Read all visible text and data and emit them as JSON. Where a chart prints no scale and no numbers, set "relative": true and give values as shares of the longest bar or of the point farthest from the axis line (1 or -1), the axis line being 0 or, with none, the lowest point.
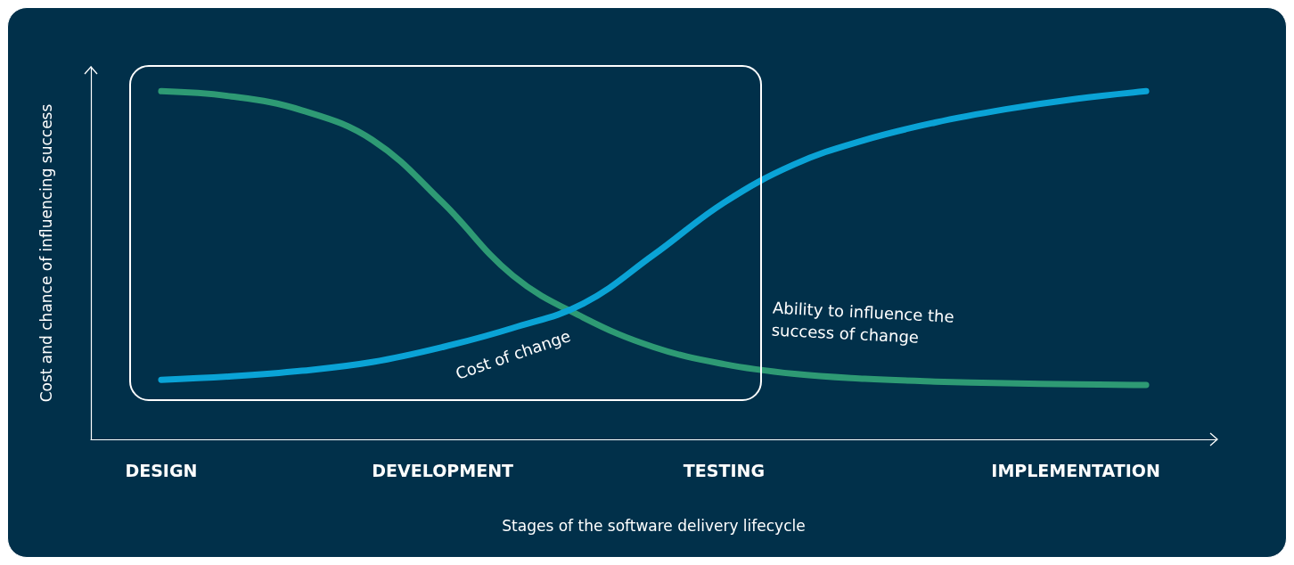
{
  "chart_data": {
    "type": "line",
    "relative": true,
    "xlabel": "Stages of the software delivery lifecycle",
    "ylabel": "Cost and chance of influencing success",
    "categories": [
      null,
      "DESIGN",
      null,
      null,
      null,
      "DEVELOPMENT",
      null,
      null,
      null,
      "TESTING",
      null,
      null,
      null,
      null,
      "IMPLEMENTATION",
      null,
      null
    ],
    "grid": false,
    "legend": false,
    "marker": "none",
    "line_style": "solid",
    "series": [
      {
        "name": "Ability to influence the success of change",
        "color": "#2e9a74",
        "values": [
          null,
          1.0,
          0.985,
          0.945,
          0.86,
          0.68,
          0.47,
          0.35,
          0.265,
          0.216,
          0.188,
          0.174,
          0.166,
          0.161,
          0.158,
          0.156,
          null
        ]
      },
      {
        "name": "Cost of change",
        "color": "#0aa3d6",
        "values": [
          null,
          0.171,
          0.181,
          0.197,
          0.222,
          0.265,
          0.32,
          0.39,
          0.53,
          0.68,
          0.79,
          0.86,
          0.91,
          0.948,
          0.978,
          1.0,
          null
        ]
      }
    ]
  }
}
